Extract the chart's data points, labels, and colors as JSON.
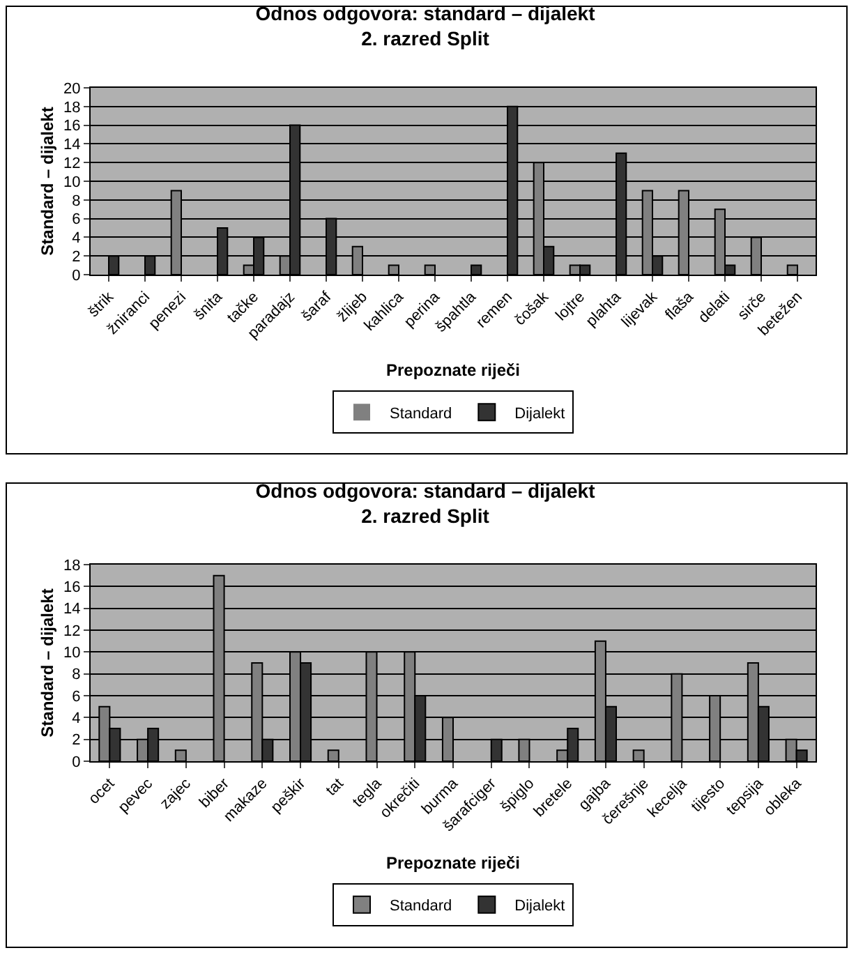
{
  "chart_data": [
    {
      "type": "bar",
      "title": "Odnos odgovora: standard – dijalekt\n2. razred Split",
      "xlabel": "Prepoznate riječi",
      "ylabel": "Standard – dijalekt",
      "categories": [
        "štrik",
        "žniranci",
        "penezi",
        "šnita",
        "tačke",
        "paradajz",
        "šaraf",
        "žlijeb",
        "kahlica",
        "perina",
        "špahtla",
        "remen",
        "čošak",
        "lojtre",
        "plahta",
        "lijevak",
        "flaša",
        "delati",
        "sirče",
        "betežen"
      ],
      "series": [
        {
          "name": "Standard",
          "color": "#808080",
          "values": [
            0,
            0,
            9,
            0,
            1,
            2,
            0,
            3,
            1,
            1,
            0,
            0,
            12,
            1,
            0,
            9,
            9,
            7,
            4,
            1
          ]
        },
        {
          "name": "Dijalekt",
          "color": "#333333",
          "values": [
            2,
            2,
            0,
            5,
            4,
            16,
            6,
            0,
            0,
            0,
            1,
            18,
            3,
            1,
            13,
            2,
            0,
            1,
            0,
            0
          ]
        }
      ],
      "ylim": [
        0,
        20
      ],
      "yticks": [
        0,
        2,
        4,
        6,
        8,
        10,
        12,
        14,
        16,
        18,
        20
      ],
      "grid": "y",
      "legend": "bottom"
    },
    {
      "type": "bar",
      "title": "Odnos odgovora: standard – dijalekt\n2. razred Split",
      "xlabel": "Prepoznate riječi",
      "ylabel": "Standard – dijalekt",
      "categories": [
        "ocet",
        "pevec",
        "zajec",
        "biber",
        "makaze",
        "peškir",
        "tat",
        "tegla",
        "okrečiti",
        "burma",
        "šarafciger",
        "špiglo",
        "bretele",
        "gajba",
        "čerešnje",
        "kecelja",
        "tijesto",
        "tepsija",
        "obleka"
      ],
      "series": [
        {
          "name": "Standard",
          "color": "#808080",
          "values": [
            5,
            2,
            1,
            17,
            9,
            10,
            1,
            10,
            10,
            4,
            0,
            2,
            1,
            11,
            1,
            8,
            6,
            9,
            2
          ]
        },
        {
          "name": "Dijalekt",
          "color": "#333333",
          "values": [
            3,
            3,
            0,
            0,
            2,
            9,
            0,
            0,
            6,
            0,
            2,
            0,
            3,
            5,
            0,
            0,
            0,
            5,
            1
          ]
        }
      ],
      "ylim": [
        0,
        18
      ],
      "yticks": [
        0,
        2,
        4,
        6,
        8,
        10,
        12,
        14,
        16,
        18
      ],
      "grid": "y",
      "legend": "bottom"
    }
  ]
}
